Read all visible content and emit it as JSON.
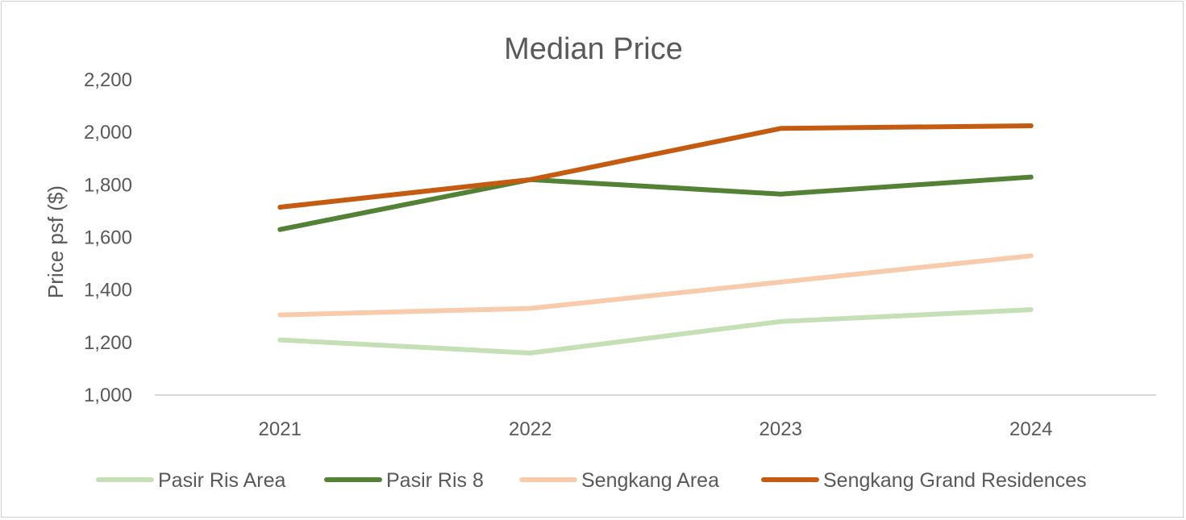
{
  "chart_data": {
    "type": "line",
    "title": "Median Price",
    "xlabel": "",
    "ylabel": "Price psf ($)",
    "categories": [
      "2021",
      "2022",
      "2023",
      "2024"
    ],
    "ylim": [
      1000,
      2200
    ],
    "yticks": [
      1000,
      1200,
      1400,
      1600,
      1800,
      2000,
      2200
    ],
    "ytick_labels": [
      "1,000",
      "1,200",
      "1,400",
      "1,600",
      "1,800",
      "2,000",
      "2,200"
    ],
    "grid": false,
    "legend_position": "bottom",
    "series": [
      {
        "name": "Pasir Ris Area",
        "color": "#c5e0b4",
        "values": [
          1210,
          1160,
          1280,
          1325
        ]
      },
      {
        "name": "Pasir Ris 8",
        "color": "#538135",
        "values": [
          1630,
          1820,
          1765,
          1830
        ]
      },
      {
        "name": "Sengkang Area",
        "color": "#f8cbad",
        "values": [
          1305,
          1330,
          1430,
          1530
        ]
      },
      {
        "name": "Sengkang Grand Residences",
        "color": "#c55a11",
        "values": [
          1715,
          1820,
          2015,
          2025
        ]
      }
    ]
  }
}
